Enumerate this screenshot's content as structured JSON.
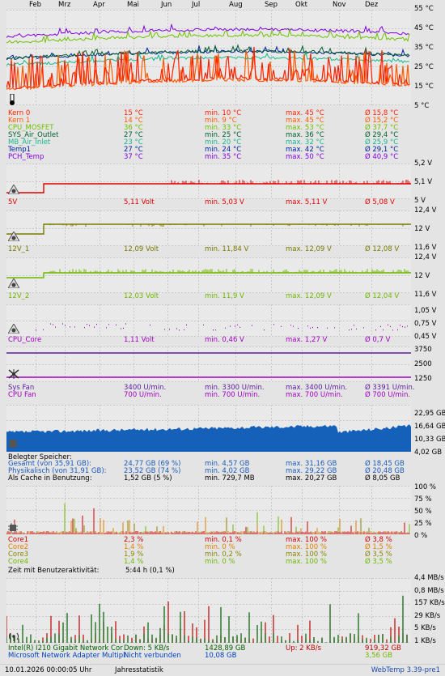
{
  "months": [
    "Feb",
    "Mrz",
    "Apr",
    "Mai",
    "Jun",
    "Jul",
    "Aug",
    "Sep",
    "Okt",
    "Nov",
    "Dez"
  ],
  "temp_chart": {
    "yticks": [
      "55 °C",
      "45 °C",
      "35 °C",
      "25 °C",
      "15 °C",
      "5 °C"
    ],
    "rows": [
      {
        "name": "Kern 0",
        "cur": "15 °C",
        "min": "min. 10 °C",
        "max": "max. 45 °C",
        "avg": "Ø 15,8 °C",
        "color": "#ff2000"
      },
      {
        "name": "Kern 1",
        "cur": "14 °C",
        "min": "min. 9 °C",
        "max": "max. 45 °C",
        "avg": "Ø 15,2 °C",
        "color": "#ff5a00"
      },
      {
        "name": "CPU_MOSFET",
        "cur": "36 °C",
        "min": "min. 33 °C",
        "max": "max. 53 °C",
        "avg": "Ø 37,7 °C",
        "color": "#70c000"
      },
      {
        "name": "SYS_Air_Outlet",
        "cur": "27 °C",
        "min": "min. 25 °C",
        "max": "max. 36 °C",
        "avg": "Ø 29,4 °C",
        "color": "#00602c"
      },
      {
        "name": "MB_Air_Inlet",
        "cur": "23 °C",
        "min": "min. 20 °C",
        "max": "max. 32 °C",
        "avg": "Ø 25,9 °C",
        "color": "#14b88c"
      },
      {
        "name": "Temp1",
        "cur": "27 °C",
        "min": "min. 24 °C",
        "max": "max. 42 °C",
        "avg": "Ø 29,1 °C",
        "color": "#0020a0"
      },
      {
        "name": "PCH_Temp",
        "cur": "37 °C",
        "min": "min. 35 °C",
        "max": "max. 50 °C",
        "avg": "Ø 40,9 °C",
        "color": "#8000e0"
      }
    ]
  },
  "v5_chart": {
    "yticks": [
      "5,2 V",
      "5,1 V",
      "5 V"
    ],
    "rows": [
      {
        "name": "5V",
        "cur": "5,11 Volt",
        "min": "min. 5,03 V",
        "max": "max. 5,11 V",
        "avg": "Ø 5,08 V",
        "color": "#e00000"
      }
    ]
  },
  "v12_1_chart": {
    "yticks": [
      "12,4 V",
      "12 V",
      "11,6 V"
    ],
    "rows": [
      {
        "name": "12V_1",
        "cur": "12,09 Volt",
        "min": "min. 11,84 V",
        "max": "max. 12,09 V",
        "avg": "Ø 12,08 V",
        "color": "#7a7a00"
      }
    ]
  },
  "v12_2_chart": {
    "yticks": [
      "12,4 V",
      "12 V",
      "11,6 V"
    ],
    "rows": [
      {
        "name": "12V_2",
        "cur": "12,03 Volt",
        "min": "min. 11,9 V",
        "max": "max. 12,09 V",
        "avg": "Ø 12,04 V",
        "color": "#70b800"
      }
    ]
  },
  "cpu_core_chart": {
    "yticks": [
      "1,05 V",
      "0,75 V",
      "0,45 V"
    ],
    "rows": [
      {
        "name": "CPU_Core",
        "cur": "1,11 Volt",
        "min": "min. 0,46 V",
        "max": "max. 1,27 V",
        "avg": "Ø 0,7 V",
        "color": "#a000c0"
      }
    ]
  },
  "fan_chart": {
    "yticks": [
      "3750",
      "2500",
      "1250"
    ],
    "rows": [
      {
        "name": "Sys Fan",
        "cur": "3400 U/min.",
        "min": "min. 3300 U/min.",
        "max": "max. 3400 U/min.",
        "avg": "Ø 3391 U/min.",
        "color": "#5a1aa0"
      },
      {
        "name": "CPU Fan",
        "cur": "700 U/min.",
        "min": "min. 700 U/min.",
        "max": "max. 700 U/min.",
        "avg": "Ø 700 U/min.",
        "color": "#a000c0"
      }
    ]
  },
  "mem_chart": {
    "yticks": [
      "22,95 GB",
      "16,64 GB",
      "10,33 GB",
      "4,02 GB"
    ],
    "header": "Belegter Speicher:",
    "rows": [
      {
        "name": "Gesamt (von 35,91 GB):",
        "cur": "24,77 GB (69 %)",
        "min": "min. 4,57 GB",
        "max": "max. 31,16 GB",
        "avg": "Ø 18,45 GB",
        "color": "#1a5ab8"
      },
      {
        "name": "Physikalisch (von 31,91 GB):",
        "cur": "23,52 GB (74 %)",
        "min": "min. 4,02 GB",
        "max": "max. 29,22 GB",
        "avg": "Ø 20,48 GB",
        "color": "#1a5ab8"
      },
      {
        "name": "Als Cache in Benutzung:",
        "cur": "1,52 GB (5 %)",
        "min": "min. 729,7 MB",
        "max": "max. 20,27 GB",
        "avg": "Ø 8,05 GB",
        "color": "#000000"
      }
    ]
  },
  "cpu_chart": {
    "yticks": [
      "100 %",
      "75 %",
      "50 %",
      "25 %",
      "0 %"
    ],
    "rows": [
      {
        "name": "Core1",
        "cur": "2,3 %",
        "min": "min. 0,1 %",
        "max": "max. 100 %",
        "avg": "Ø 3,8 %",
        "color": "#d00000"
      },
      {
        "name": "Core2",
        "cur": "1,4 %",
        "min": "min. 0 %",
        "max": "max. 100 %",
        "avg": "Ø 1,5 %",
        "color": "#e08000"
      },
      {
        "name": "Core3",
        "cur": "1,9 %",
        "min": "min. 0,2 %",
        "max": "max. 100 %",
        "avg": "Ø 3,5 %",
        "color": "#888800"
      },
      {
        "name": "Core4",
        "cur": "1,4 %",
        "min": "min. 0 %",
        "max": "max. 100 %",
        "avg": "Ø 3,5 %",
        "color": "#70b800"
      }
    ],
    "activity_label": "Zeit mit Benutzeraktivität:",
    "activity_value": "5:44 h (0,1 %)"
  },
  "net_chart": {
    "yticks": [
      "4,4 MB/s",
      "0,8 MB/s",
      "157 KB/s",
      "29 KB/s",
      "5 KB/s",
      "1 KB/s"
    ],
    "row1": {
      "name": "Intel(R) I210 Gigabit Network Cor",
      "down": "Down: 5 KB/s",
      "down_total": "1428,89 GB",
      "up": "Up: 2 KB/s",
      "up_total": "919,32 GB"
    },
    "row2": {
      "name": "Microsoft Network Adapter Multipl",
      "state": "Nicht verbunden",
      "down_total": "10,08 GB",
      "up_total": "3,56 GB"
    }
  },
  "footer": {
    "timestamp": "10.01.2026 00:00:05 Uhr",
    "mode": "Jahresstatistik",
    "version": "WebTemp 3.39-pre1"
  },
  "colors": {
    "down": "#006000",
    "up": "#c00000",
    "memfill": "#1560b8",
    "background": "#e4e4e4"
  }
}
